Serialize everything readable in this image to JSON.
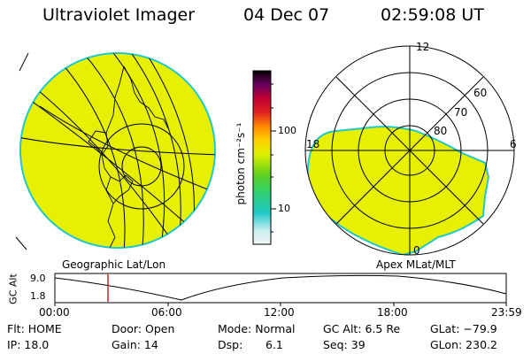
{
  "header": {
    "title": "Ultraviolet Imager",
    "date": "04 Dec 07",
    "time": "02:59:08 UT"
  },
  "colorbar": {
    "label": "photon cm⁻²s⁻¹",
    "ticks": [
      "100",
      "10"
    ],
    "scale": "log"
  },
  "left_panel": {
    "caption": "Geographic Lat/Lon",
    "fill_color": "#e6f000",
    "edge_color": "#20c8c8"
  },
  "right_panel": {
    "caption": "Apex MLat/MLT",
    "mlt_labels": [
      "12",
      "18",
      "6",
      "0"
    ],
    "mlat_labels": [
      "60",
      "70",
      "80"
    ],
    "fill_color": "#e6f000",
    "edge_color": "#20c8c8"
  },
  "altitude_plot": {
    "ylabel": "GC Alt",
    "yticks": [
      "9.0",
      "1.8"
    ],
    "xticks": [
      "00:00",
      "06:00",
      "12:00",
      "18:00",
      "23:59"
    ],
    "marker_time": "02:59:08",
    "marker_color": "#d00000"
  },
  "info": {
    "row1": {
      "filter": "Flt: HOME",
      "door": "Door: Open",
      "mode": "Mode: Normal",
      "gc_alt": "GC Alt: 6.5 Re",
      "glat": "GLat: −79.9"
    },
    "row2": {
      "ip": "IP: 18.0",
      "gain": "Gain: 14",
      "dsp_label": "Dsp:",
      "dsp_value": "6.1",
      "seq": "Seq: 39",
      "glon": "GLon: 230.2"
    }
  }
}
